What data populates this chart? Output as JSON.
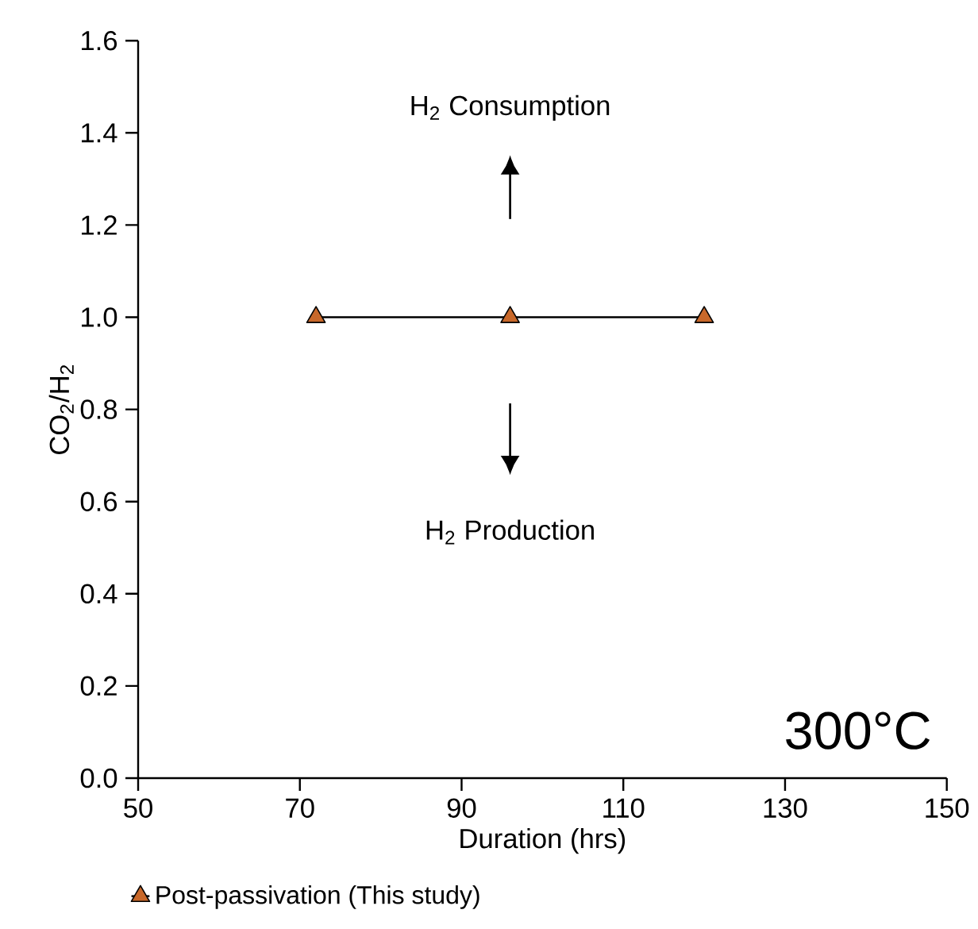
{
  "chart_data": {
    "type": "line",
    "xlabel": "Duration (hrs)",
    "ylabel": "CO$_{2}$/H$_{2}$",
    "x": [
      72,
      96,
      120
    ],
    "series": [
      {
        "name": "Post-passivation (This study)",
        "color": "#c8682a",
        "values": [
          1.0,
          1.0,
          1.0
        ]
      }
    ],
    "xlim": [
      50,
      150
    ],
    "xticks": [
      50,
      70,
      90,
      110,
      130,
      150
    ],
    "ylim": [
      0,
      1.6
    ],
    "yticks": [
      {
        "value": 0,
        "label": "0.0"
      },
      {
        "value": 0.2,
        "label": "0.2"
      },
      {
        "value": 0.4,
        "label": "0.4"
      },
      {
        "value": 0.6,
        "label": "0.6"
      },
      {
        "value": 0.8,
        "label": "0.8"
      },
      {
        "value": 1.0,
        "label": "1.0"
      },
      {
        "value": 1.2,
        "label": "1.2"
      },
      {
        "value": 1.4,
        "label": "1.4"
      },
      {
        "value": 1.6,
        "label": "1.6"
      }
    ],
    "annotations": [
      "H$_{2}$ Consumption",
      "H$_{2}$ Production",
      "300°C"
    ],
    "marker": "triangle",
    "line_style": "solid",
    "grid": false,
    "legend": "bottom left"
  }
}
